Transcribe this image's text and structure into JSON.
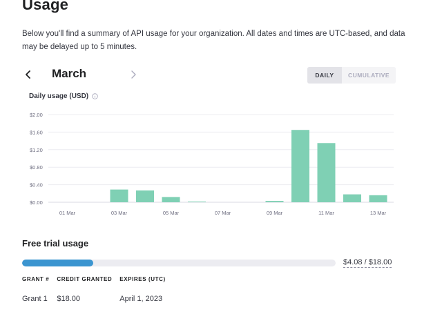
{
  "page": {
    "title": "Usage",
    "intro": "Below you'll find a summary of API usage for your organization. All dates and times are UTC-based, and data may be delayed up to 5 minutes."
  },
  "month_nav": {
    "label": "March",
    "prev_icon": "chevron-left-icon",
    "next_icon": "chevron-right-icon"
  },
  "view_toggle": {
    "daily": "DAILY",
    "cumulative": "CUMULATIVE",
    "selected": "DAILY"
  },
  "chart_heading": {
    "title": "Daily usage (USD)",
    "icon": "info-icon"
  },
  "chart_data": {
    "type": "bar",
    "title": "Daily usage (USD)",
    "xlabel": "",
    "ylabel": "",
    "categories": [
      "01 Mar",
      "02 Mar",
      "03 Mar",
      "04 Mar",
      "05 Mar",
      "06 Mar",
      "07 Mar",
      "08 Mar",
      "09 Mar",
      "10 Mar",
      "11 Mar",
      "12 Mar",
      "13 Mar"
    ],
    "values": [
      0,
      0,
      0.29,
      0.27,
      0.12,
      0.01,
      0,
      0,
      0.03,
      1.65,
      1.35,
      0.18,
      0.16
    ],
    "x_tick_labels": [
      "01 Mar",
      "03 Mar",
      "05 Mar",
      "07 Mar",
      "09 Mar",
      "11 Mar",
      "13 Mar"
    ],
    "y_ticks": [
      0,
      0.4,
      0.8,
      1.2,
      1.6,
      2.0
    ],
    "y_tick_labels": [
      "$0.00",
      "$0.40",
      "$0.80",
      "$1.20",
      "$1.60",
      "$2.00"
    ],
    "ylim": [
      0,
      2.0
    ],
    "grid": true,
    "color": "#7fd0b4"
  },
  "free_trial": {
    "title": "Free trial usage",
    "used_fraction": 0.2267,
    "amount_label": "$4.08 / $18.00",
    "bar_color": "#3b95d0",
    "columns": [
      "GRANT #",
      "CREDIT GRANTED",
      "EXPIRES (UTC)"
    ],
    "rows": [
      [
        "Grant 1",
        "$18.00",
        "April 1, 2023"
      ]
    ]
  }
}
